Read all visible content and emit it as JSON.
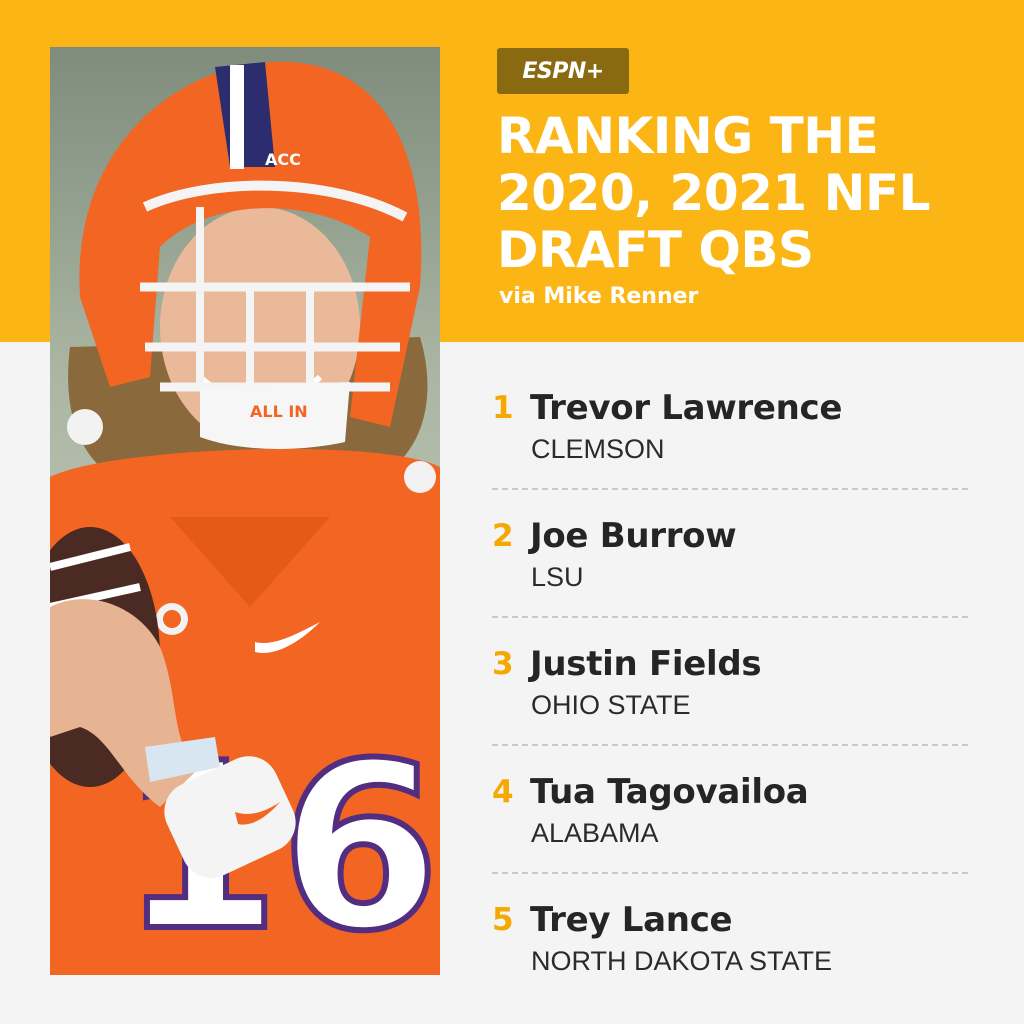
{
  "brand": {
    "logo_text": "ESPN+"
  },
  "colors": {
    "accent": "#fbb615",
    "rank_number": "#f5a800",
    "background": "#f4f4f4",
    "jersey": "#f26522"
  },
  "headline": {
    "lines": [
      "RANKING THE",
      "2020, 2021 NFL",
      "DRAFT QBS"
    ],
    "byline": "via Mike Renner"
  },
  "photo": {
    "helmet_text": "ACC",
    "chin_strap_text": "ALL IN"
  },
  "rankings": [
    {
      "rank": "1",
      "name": "Trevor Lawrence",
      "school": "CLEMSON"
    },
    {
      "rank": "2",
      "name": "Joe Burrow",
      "school": "LSU"
    },
    {
      "rank": "3",
      "name": "Justin Fields",
      "school": "OHIO STATE"
    },
    {
      "rank": "4",
      "name": "Tua Tagovailoa",
      "school": "ALABAMA"
    },
    {
      "rank": "5",
      "name": "Trey Lance",
      "school": "NORTH DAKOTA STATE"
    }
  ]
}
